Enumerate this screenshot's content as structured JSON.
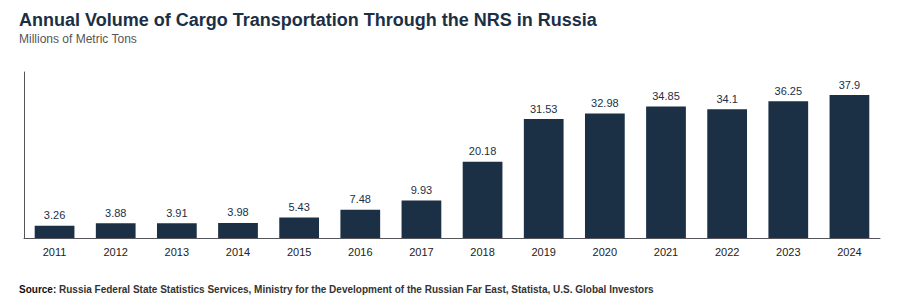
{
  "chart_data": {
    "type": "bar",
    "title": "Annual Volume of Cargo Transportation Through the NRS in Russia",
    "subtitle": "Millions of Metric Tons",
    "source_label": "Source:",
    "source_text": "Russia Federal State Statistics Services, Ministry for the Development of the Russian Far East, Statista, U.S. Global Investors",
    "categories": [
      "2011",
      "2012",
      "2013",
      "2014",
      "2015",
      "2016",
      "2017",
      "2018",
      "2019",
      "2020",
      "2021",
      "2022",
      "2023",
      "2024"
    ],
    "values": [
      3.26,
      3.88,
      3.91,
      3.98,
      5.43,
      7.48,
      9.93,
      20.18,
      31.53,
      32.98,
      34.85,
      34.1,
      36.25,
      37.9
    ],
    "color": "#1b2f45",
    "ylim": [
      0,
      44
    ],
    "grid": false,
    "data_labels": true,
    "tick_labels": "x"
  }
}
